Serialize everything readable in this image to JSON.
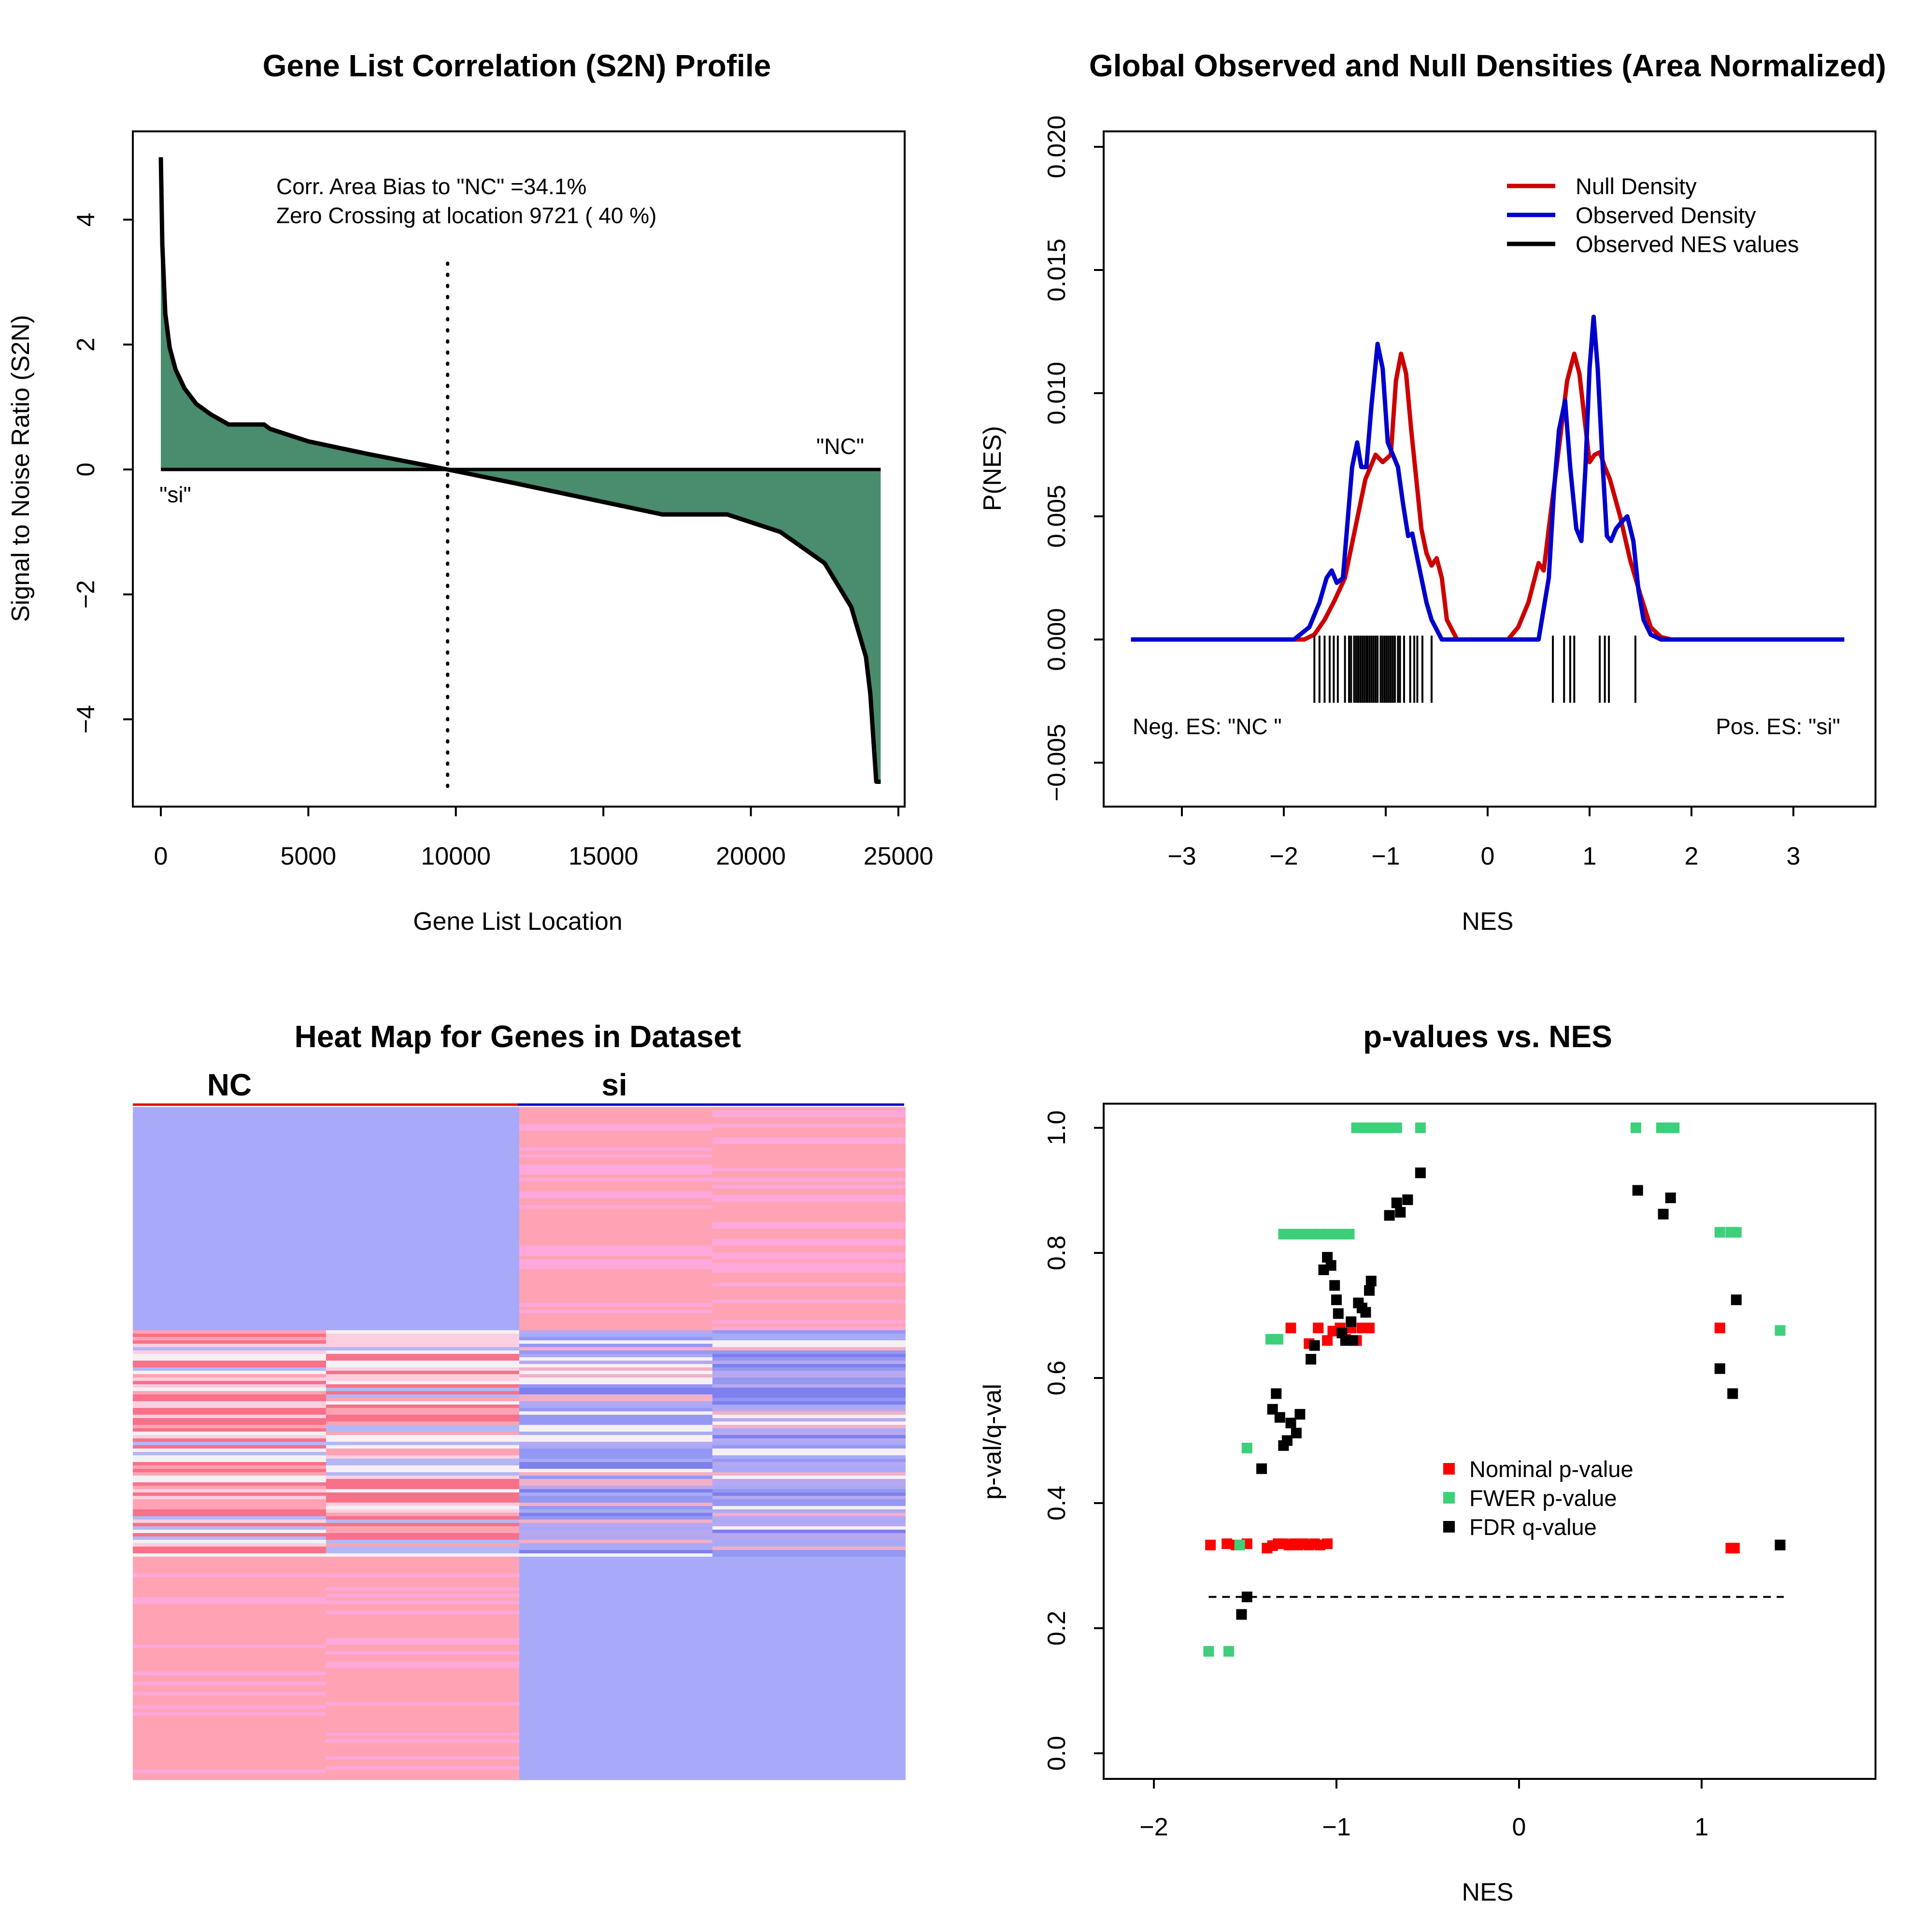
{
  "chart_data": [
    {
      "type": "area",
      "title": "Gene List Correlation (S2N) Profile",
      "xlabel": "Gene List Location",
      "ylabel": "Signal to Noise Ratio (S2N)",
      "xlim": [
        0,
        25000
      ],
      "ylim": [
        -5,
        5
      ],
      "xticks": [
        "0",
        "5000",
        "10000",
        "15000",
        "20000",
        "25000"
      ],
      "yticks": [
        "−4",
        "−2",
        "0",
        "2",
        "4"
      ],
      "annotations": [
        "Corr. Area Bias to \"NC\" =34.1%",
        "Zero Crossing at location  9721  ( 40  %)"
      ],
      "left_label": "\"si\"",
      "right_label": "\"NC\"",
      "zero_crossing": 9721,
      "fill_color": "#4a8c6e",
      "x": [
        0,
        50,
        150,
        300,
        500,
        800,
        1200,
        1700,
        2300,
        3500,
        3700,
        5000,
        7000,
        9721,
        12000,
        15000,
        17000,
        19200,
        21000,
        22500,
        23400,
        23900,
        24050,
        24150,
        24250,
        24400
      ],
      "y": [
        5.0,
        3.6,
        2.5,
        1.95,
        1.6,
        1.3,
        1.05,
        0.88,
        0.72,
        0.72,
        0.65,
        0.45,
        0.25,
        0.0,
        -0.22,
        -0.52,
        -0.72,
        -0.72,
        -1.0,
        -1.5,
        -2.2,
        -3.0,
        -3.6,
        -4.3,
        -5.0,
        -5.0
      ]
    },
    {
      "type": "line",
      "title": "Global Observed and Null Densities (Area Normalized)",
      "xlabel": "NES",
      "ylabel": "P(NES)",
      "xlim": [
        -3.5,
        3.5
      ],
      "ylim": [
        -0.005,
        0.02
      ],
      "xticks": [
        "−3",
        "−2",
        "−1",
        "0",
        "1",
        "2",
        "3"
      ],
      "yticks": [
        "−0.005",
        "0.000",
        "0.005",
        "0.010",
        "0.015",
        "0.020"
      ],
      "legend": [
        "Null Density",
        "Observed Density",
        "Observed NES values"
      ],
      "legend_position": "top-right",
      "left_note": "Neg. ES: \"NC \"",
      "right_note": "Pos. ES: \"si\"",
      "series": [
        {
          "name": "Null Density",
          "color": "#cc0000",
          "x": [
            -3.5,
            -1.8,
            -1.7,
            -1.6,
            -1.5,
            -1.4,
            -1.3,
            -1.2,
            -1.1,
            -1.03,
            -0.95,
            -0.9,
            -0.85,
            -0.8,
            -0.75,
            -0.7,
            -0.65,
            -0.6,
            -0.55,
            -0.5,
            -0.45,
            -0.4,
            -0.3,
            0.2,
            0.3,
            0.4,
            0.5,
            0.55,
            0.6,
            0.7,
            0.78,
            0.85,
            0.9,
            1.0,
            1.05,
            1.1,
            1.15,
            1.2,
            1.3,
            1.4,
            1.5,
            1.6,
            1.7,
            1.8,
            3.5
          ],
          "y": [
            0,
            0,
            0.0002,
            0.0008,
            0.0016,
            0.0025,
            0.0045,
            0.0065,
            0.0075,
            0.0072,
            0.0075,
            0.0105,
            0.0116,
            0.0108,
            0.0085,
            0.0065,
            0.0045,
            0.0035,
            0.003,
            0.0033,
            0.0025,
            0.0008,
            0,
            0,
            0.0005,
            0.0015,
            0.0031,
            0.0028,
            0.0045,
            0.0078,
            0.0105,
            0.0116,
            0.0108,
            0.0072,
            0.0075,
            0.0076,
            0.007,
            0.0065,
            0.005,
            0.0032,
            0.0018,
            0.0005,
            0.0001,
            0,
            0
          ]
        },
        {
          "name": "Observed Density",
          "color": "#0000cc",
          "x": [
            -3.5,
            -1.9,
            -1.75,
            -1.65,
            -1.58,
            -1.53,
            -1.48,
            -1.42,
            -1.38,
            -1.33,
            -1.28,
            -1.24,
            -1.19,
            -1.14,
            -1.08,
            -1.03,
            -0.98,
            -0.93,
            -0.88,
            -0.83,
            -0.78,
            -0.74,
            -0.7,
            -0.65,
            -0.6,
            -0.55,
            -0.45,
            0.2,
            0.5,
            0.6,
            0.65,
            0.7,
            0.76,
            0.81,
            0.87,
            0.92,
            0.96,
            1.0,
            1.04,
            1.08,
            1.13,
            1.17,
            1.21,
            1.26,
            1.32,
            1.37,
            1.43,
            1.48,
            1.53,
            1.6,
            1.7,
            3.5
          ],
          "y": [
            0,
            0,
            0.0005,
            0.0015,
            0.0025,
            0.0028,
            0.0023,
            0.0025,
            0.0045,
            0.007,
            0.008,
            0.007,
            0.007,
            0.0095,
            0.012,
            0.011,
            0.008,
            0.0075,
            0.007,
            0.0055,
            0.0042,
            0.0043,
            0.0035,
            0.0025,
            0.0015,
            0.0008,
            0,
            0,
            0,
            0.0025,
            0.006,
            0.0085,
            0.0097,
            0.007,
            0.0045,
            0.004,
            0.007,
            0.011,
            0.0131,
            0.011,
            0.007,
            0.0042,
            0.004,
            0.0045,
            0.0048,
            0.005,
            0.004,
            0.002,
            0.0008,
            0.0002,
            0,
            0
          ]
        }
      ],
      "observed_nes": [
        -1.7,
        -1.65,
        -1.6,
        -1.55,
        -1.51,
        -1.47,
        -1.4,
        -1.36,
        -1.34,
        -1.31,
        -1.29,
        -1.27,
        -1.25,
        -1.23,
        -1.21,
        -1.19,
        -1.18,
        -1.16,
        -1.14,
        -1.12,
        -1.1,
        -1.08,
        -1.05,
        -1.03,
        -1.01,
        -0.99,
        -0.97,
        -0.95,
        -0.93,
        -0.91,
        -0.88,
        -0.86,
        -0.82,
        -0.76,
        -0.72,
        -0.69,
        -0.64,
        -0.55,
        0.64,
        0.75,
        0.81,
        0.85,
        1.1,
        1.15,
        1.19,
        1.45
      ]
    },
    {
      "type": "heatmap",
      "title": "Heat Map for Genes in Dataset",
      "column_groups": [
        "NC",
        "si"
      ],
      "columns": 4
    },
    {
      "type": "scatter",
      "title": "p-values vs. NES",
      "xlabel": "NES",
      "ylabel": "p-val/q-val",
      "xlim": [
        -2,
        1.5
      ],
      "ylim": [
        0,
        1
      ],
      "xticks": [
        "−2",
        "−1",
        "0",
        "1"
      ],
      "yticks": [
        "0.0",
        "0.2",
        "0.4",
        "0.6",
        "0.8",
        "1.0"
      ],
      "threshold": 0.25,
      "legend_position": "center-right",
      "series": [
        {
          "name": "Nominal p-value",
          "color": "#ff0000",
          "points": [
            [
              -1.69,
              0.333
            ],
            [
              -1.6,
              0.335
            ],
            [
              -1.55,
              0.333
            ],
            [
              -1.49,
              0.335
            ],
            [
              -1.38,
              0.328
            ],
            [
              -1.35,
              0.332
            ],
            [
              -1.32,
              0.335
            ],
            [
              -1.29,
              0.335
            ],
            [
              -1.26,
              0.333
            ],
            [
              -1.23,
              0.335
            ],
            [
              -1.21,
              0.333
            ],
            [
              -1.18,
              0.335
            ],
            [
              -1.15,
              0.333
            ],
            [
              -1.12,
              0.335
            ],
            [
              -1.09,
              0.333
            ],
            [
              -1.05,
              0.335
            ],
            [
              -1.25,
              0.68
            ],
            [
              -1.15,
              0.655
            ],
            [
              -1.1,
              0.68
            ],
            [
              -1.05,
              0.66
            ],
            [
              -1.02,
              0.675
            ],
            [
              -0.98,
              0.68
            ],
            [
              -0.95,
              0.662
            ],
            [
              -0.92,
              0.68
            ],
            [
              -0.89,
              0.66
            ],
            [
              -0.86,
              0.68
            ],
            [
              -0.82,
              0.68
            ],
            [
              1.1,
              0.68
            ],
            [
              1.16,
              0.328
            ],
            [
              1.18,
              0.328
            ],
            [
              1.43,
              0.333
            ]
          ]
        },
        {
          "name": "FWER p-value",
          "color": "#3ecf7a",
          "points": [
            [
              -1.7,
              0.163
            ],
            [
              -1.59,
              0.163
            ],
            [
              -1.53,
              0.333
            ],
            [
              -1.49,
              0.488
            ],
            [
              -1.36,
              0.662
            ],
            [
              -1.32,
              0.662
            ],
            [
              -1.29,
              0.83
            ],
            [
              -1.25,
              0.83
            ],
            [
              -1.21,
              0.83
            ],
            [
              -1.17,
              0.83
            ],
            [
              -1.13,
              0.83
            ],
            [
              -1.09,
              0.83
            ],
            [
              -1.05,
              0.83
            ],
            [
              -1.01,
              0.83
            ],
            [
              -0.97,
              0.83
            ],
            [
              -0.93,
              0.83
            ],
            [
              -0.89,
              1.0
            ],
            [
              -0.85,
              1.0
            ],
            [
              -0.81,
              1.0
            ],
            [
              -0.76,
              1.0
            ],
            [
              -0.71,
              1.0
            ],
            [
              -0.67,
              1.0
            ],
            [
              -0.54,
              1.0
            ],
            [
              0.64,
              1.0
            ],
            [
              0.78,
              1.0
            ],
            [
              0.82,
              1.0
            ],
            [
              0.85,
              1.0
            ],
            [
              1.1,
              0.833
            ],
            [
              1.16,
              0.833
            ],
            [
              1.19,
              0.833
            ],
            [
              1.43,
              0.676
            ]
          ]
        },
        {
          "name": "FDR q-value",
          "color": "#000000",
          "points": [
            [
              -1.52,
              0.222
            ],
            [
              -1.49,
              0.25
            ],
            [
              -1.41,
              0.455
            ],
            [
              -1.35,
              0.55
            ],
            [
              -1.33,
              0.575
            ],
            [
              -1.31,
              0.537
            ],
            [
              -1.29,
              0.492
            ],
            [
              -1.27,
              0.5
            ],
            [
              -1.25,
              0.528
            ],
            [
              -1.22,
              0.512
            ],
            [
              -1.2,
              0.542
            ],
            [
              -1.14,
              0.63
            ],
            [
              -1.12,
              0.652
            ],
            [
              -1.07,
              0.773
            ],
            [
              -1.05,
              0.793
            ],
            [
              -1.03,
              0.78
            ],
            [
              -1.01,
              0.748
            ],
            [
              -1.0,
              0.725
            ],
            [
              -0.99,
              0.703
            ],
            [
              -0.97,
              0.672
            ],
            [
              -0.95,
              0.66
            ],
            [
              -0.92,
              0.69
            ],
            [
              -0.91,
              0.66
            ],
            [
              -0.88,
              0.72
            ],
            [
              -0.86,
              0.712
            ],
            [
              -0.84,
              0.705
            ],
            [
              -0.82,
              0.74
            ],
            [
              -0.81,
              0.755
            ],
            [
              -0.71,
              0.86
            ],
            [
              -0.67,
              0.88
            ],
            [
              -0.65,
              0.865
            ],
            [
              -0.61,
              0.885
            ],
            [
              -0.54,
              0.928
            ],
            [
              0.65,
              0.9
            ],
            [
              0.79,
              0.862
            ],
            [
              0.83,
              0.888
            ],
            [
              1.1,
              0.615
            ],
            [
              1.17,
              0.575
            ],
            [
              1.19,
              0.725
            ],
            [
              1.43,
              0.333
            ]
          ]
        }
      ]
    }
  ]
}
